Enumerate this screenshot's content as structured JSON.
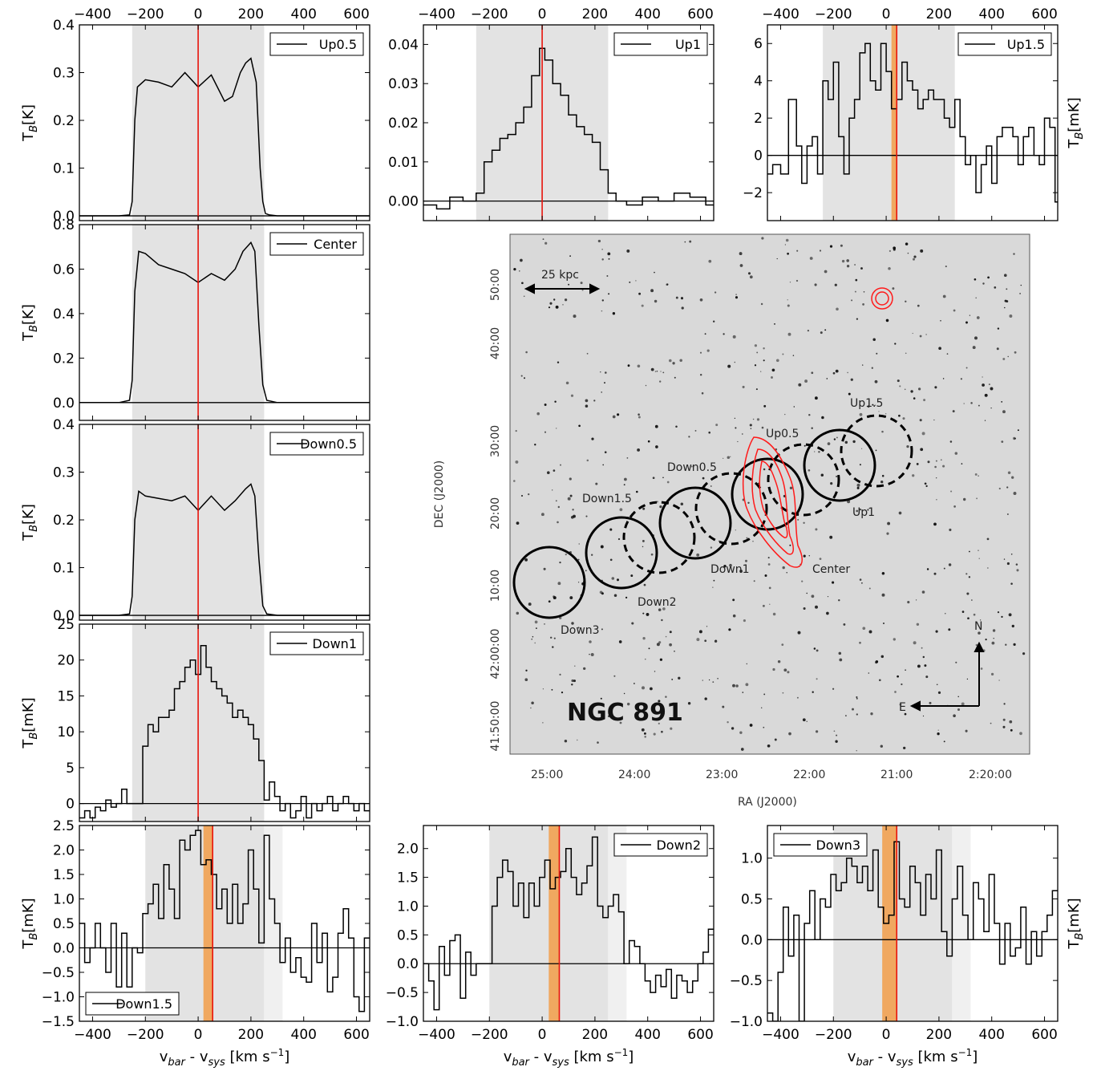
{
  "chart_data": [
    {
      "id": "up05",
      "type": "line",
      "legend": "Up0.5",
      "legend_position": "top-right",
      "xlim": [
        -450,
        650
      ],
      "ylim": [
        -0.01,
        0.4
      ],
      "yticks": [
        "0.0",
        "0.1",
        "0.2",
        "0.3",
        "0.4"
      ],
      "ytick_values": [
        0.0,
        0.1,
        0.2,
        0.3,
        0.4
      ],
      "xticks": [
        "−400",
        "−200",
        "0",
        "200",
        "400",
        "600"
      ],
      "xtick_values": [
        -400,
        -200,
        0,
        200,
        400,
        600
      ],
      "xticks_position": "top",
      "ylabel": "T",
      "ylabel_sub": "B",
      "ylabel_unit": "[K]",
      "ylabel_side": "left",
      "xlabel": "",
      "shade": [
        [
          -250,
          250
        ]
      ],
      "band": null,
      "vline": 0,
      "steps": false,
      "x": [
        -450,
        -300,
        -260,
        -250,
        -240,
        -230,
        -200,
        -150,
        -100,
        -50,
        0,
        50,
        100,
        130,
        160,
        180,
        200,
        220,
        235,
        245,
        255,
        270,
        300,
        650
      ],
      "y": [
        0.0,
        0.0,
        0.002,
        0.03,
        0.2,
        0.27,
        0.285,
        0.28,
        0.27,
        0.3,
        0.27,
        0.295,
        0.24,
        0.25,
        0.3,
        0.32,
        0.33,
        0.28,
        0.1,
        0.03,
        0.005,
        0.002,
        0.0,
        0.0
      ]
    },
    {
      "id": "up1",
      "type": "line",
      "legend": "Up1",
      "legend_position": "top-right",
      "xlim": [
        -450,
        650
      ],
      "ylim": [
        -0.005,
        0.045
      ],
      "yticks": [
        "0.00",
        "0.01",
        "0.02",
        "0.03",
        "0.04"
      ],
      "ytick_values": [
        0.0,
        0.01,
        0.02,
        0.03,
        0.04
      ],
      "xticks": [
        "−400",
        "−200",
        "0",
        "200",
        "400",
        "600"
      ],
      "xtick_values": [
        -400,
        -200,
        0,
        200,
        400,
        600
      ],
      "xticks_position": "top",
      "ylabel": "",
      "ylabel_sub": "",
      "ylabel_unit": "",
      "ylabel_side": "left",
      "xlabel": "",
      "shade": [
        [
          -250,
          250
        ]
      ],
      "band": null,
      "vline": 0,
      "steps": true,
      "x": [
        -450,
        -400,
        -350,
        -300,
        -250,
        -220,
        -190,
        -160,
        -130,
        -100,
        -70,
        -40,
        -10,
        10,
        40,
        70,
        100,
        130,
        160,
        190,
        220,
        250,
        280,
        320,
        380,
        440,
        500,
        560,
        620
      ],
      "y": [
        -0.001,
        -0.002,
        0.001,
        0.0,
        0.002,
        0.01,
        0.013,
        0.016,
        0.017,
        0.02,
        0.024,
        0.032,
        0.039,
        0.036,
        0.03,
        0.027,
        0.022,
        0.019,
        0.017,
        0.015,
        0.008,
        0.002,
        0.0,
        -0.001,
        0.001,
        0.0,
        0.002,
        0.001,
        -0.001
      ]
    },
    {
      "id": "up15",
      "type": "line",
      "legend": "Up1.5",
      "legend_position": "top-right",
      "xlim": [
        -450,
        650
      ],
      "ylim": [
        -3.5,
        7
      ],
      "yticks": [
        "−2",
        "0",
        "2",
        "4",
        "6"
      ],
      "ytick_values": [
        -2,
        0,
        2,
        4,
        6
      ],
      "xticks": [
        "−400",
        "−200",
        "0",
        "200",
        "400",
        "600"
      ],
      "xtick_values": [
        -400,
        -200,
        0,
        200,
        400,
        600
      ],
      "xticks_position": "top",
      "ylabel": "T",
      "ylabel_sub": "B",
      "ylabel_unit": "[mK]",
      "ylabel_side": "right",
      "xlabel": "",
      "shade": [
        [
          -240,
          260
        ]
      ],
      "band": [
        20,
        40
      ],
      "vline": 40,
      "steps": true,
      "x": [
        -450,
        -430,
        -400,
        -370,
        -340,
        -320,
        -300,
        -280,
        -260,
        -240,
        -220,
        -200,
        -180,
        -160,
        -140,
        -120,
        -100,
        -80,
        -60,
        -40,
        -20,
        0,
        20,
        40,
        60,
        80,
        100,
        120,
        140,
        160,
        180,
        200,
        220,
        240,
        260,
        280,
        300,
        320,
        340,
        360,
        380,
        400,
        420,
        440,
        460,
        480,
        500,
        520,
        540,
        560,
        580,
        600,
        620,
        640
      ],
      "y": [
        -1,
        -0.5,
        -1,
        3,
        0.5,
        -1.5,
        0.5,
        1,
        -1,
        4,
        3,
        5,
        1,
        -1,
        2,
        3,
        5.5,
        6,
        4,
        3.5,
        6,
        4.5,
        2.5,
        3,
        5,
        4,
        3.5,
        2.5,
        3,
        3.5,
        3,
        3,
        2,
        1.5,
        3,
        1,
        -0.5,
        0,
        -2,
        -0.5,
        0.5,
        -1.5,
        1,
        1.5,
        1.5,
        1,
        -0.5,
        1,
        1.5,
        0,
        -0.5,
        2,
        1.5,
        -2.5
      ]
    },
    {
      "id": "center",
      "type": "line",
      "legend": "Center",
      "legend_position": "top-right",
      "xlim": [
        -450,
        650
      ],
      "ylim": [
        -0.08,
        0.8
      ],
      "yticks": [
        "0.0",
        "0.2",
        "0.4",
        "0.6",
        "0.8"
      ],
      "ytick_values": [
        0.0,
        0.2,
        0.4,
        0.6,
        0.8
      ],
      "xticks": [],
      "xtick_values": [
        -400,
        -200,
        0,
        200,
        400,
        600
      ],
      "xticks_position": "none",
      "ylabel": "T",
      "ylabel_sub": "B",
      "ylabel_unit": "[K]",
      "ylabel_side": "left",
      "xlabel": "",
      "shade": [
        [
          -250,
          250
        ]
      ],
      "band": null,
      "vline": 0,
      "steps": false,
      "x": [
        -450,
        -300,
        -260,
        -250,
        -240,
        -225,
        -200,
        -150,
        -100,
        -50,
        0,
        50,
        100,
        140,
        170,
        200,
        215,
        230,
        245,
        260,
        300,
        650
      ],
      "y": [
        0.0,
        0.0,
        0.01,
        0.1,
        0.5,
        0.68,
        0.67,
        0.62,
        0.6,
        0.58,
        0.54,
        0.58,
        0.55,
        0.6,
        0.68,
        0.72,
        0.68,
        0.35,
        0.08,
        0.01,
        0.0,
        0.0
      ]
    },
    {
      "id": "down05",
      "type": "line",
      "legend": "Down0.5",
      "legend_position": "top-right",
      "xlim": [
        -450,
        650
      ],
      "ylim": [
        -0.01,
        0.4
      ],
      "yticks": [
        "0.0",
        "0.1",
        "0.2",
        "0.3",
        "0.4"
      ],
      "ytick_values": [
        0.0,
        0.1,
        0.2,
        0.3,
        0.4
      ],
      "xticks": [],
      "xtick_values": [
        -400,
        -200,
        0,
        200,
        400,
        600
      ],
      "xticks_position": "none",
      "ylabel": "T",
      "ylabel_sub": "B",
      "ylabel_unit": "[K]",
      "ylabel_side": "left",
      "xlabel": "",
      "shade": [
        [
          -250,
          250
        ]
      ],
      "band": null,
      "vline": 0,
      "steps": false,
      "x": [
        -450,
        -300,
        -260,
        -250,
        -240,
        -225,
        -200,
        -150,
        -100,
        -50,
        0,
        50,
        100,
        140,
        180,
        200,
        215,
        230,
        245,
        260,
        300,
        650
      ],
      "y": [
        0.0,
        0.0,
        0.003,
        0.04,
        0.2,
        0.26,
        0.25,
        0.245,
        0.24,
        0.25,
        0.22,
        0.25,
        0.22,
        0.24,
        0.265,
        0.275,
        0.25,
        0.12,
        0.02,
        0.003,
        0.0,
        0.0
      ]
    },
    {
      "id": "down1",
      "type": "line",
      "legend": "Down1",
      "legend_position": "top-right",
      "xlim": [
        -450,
        650
      ],
      "ylim": [
        -2.5,
        25
      ],
      "yticks": [
        "0",
        "5",
        "10",
        "15",
        "20",
        "25"
      ],
      "ytick_values": [
        0,
        5,
        10,
        15,
        20,
        25
      ],
      "xticks": [],
      "xtick_values": [
        -400,
        -200,
        0,
        200,
        400,
        600
      ],
      "xticks_position": "none",
      "ylabel": "T",
      "ylabel_sub": "B",
      "ylabel_unit": "[mK]",
      "ylabel_side": "left",
      "xlabel": "",
      "shade": [
        [
          -250,
          250
        ]
      ],
      "band": null,
      "vline": 0,
      "steps": true,
      "x": [
        -450,
        -430,
        -410,
        -390,
        -370,
        -350,
        -330,
        -310,
        -290,
        -270,
        -250,
        -230,
        -210,
        -190,
        -170,
        -150,
        -130,
        -110,
        -90,
        -70,
        -50,
        -30,
        -10,
        10,
        30,
        50,
        70,
        90,
        110,
        130,
        150,
        170,
        190,
        210,
        230,
        250,
        270,
        290,
        310,
        330,
        350,
        370,
        390,
        410,
        430,
        450,
        470,
        490,
        510,
        530,
        550,
        570,
        590,
        610,
        630
      ],
      "y": [
        -2,
        -1,
        -2,
        -0.5,
        -1,
        0.5,
        -0.5,
        0,
        2,
        0,
        0,
        0,
        8,
        11,
        10,
        12,
        12,
        13,
        16,
        17,
        19,
        20,
        18,
        22,
        19,
        17,
        16,
        15,
        14,
        12,
        13,
        12,
        11,
        9,
        6,
        0.5,
        3,
        1,
        -1,
        0,
        -2,
        -1,
        1,
        -2,
        0,
        -1,
        0,
        1,
        -1,
        0,
        1,
        0,
        -1,
        0,
        -1
      ]
    },
    {
      "id": "down15",
      "type": "line",
      "legend": "Down1.5",
      "legend_position": "bottom-left",
      "xlim": [
        -450,
        650
      ],
      "ylim": [
        -1.5,
        2.5
      ],
      "yticks": [
        "−1.5",
        "−1.0",
        "−0.5",
        "0.0",
        "0.5",
        "1.0",
        "1.5",
        "2.0",
        "2.5"
      ],
      "ytick_values": [
        -1.5,
        -1.0,
        -0.5,
        0.0,
        0.5,
        1.0,
        1.5,
        2.0,
        2.5
      ],
      "xticks": [
        "−400",
        "−200",
        "0",
        "200",
        "400",
        "600"
      ],
      "xtick_values": [
        -400,
        -200,
        0,
        200,
        400,
        600
      ],
      "xticks_position": "bottom",
      "ylabel": "T",
      "ylabel_sub": "B",
      "ylabel_unit": "[mK]",
      "ylabel_side": "left",
      "xlabel": "v",
      "xlabel_sub1": "bar",
      "xlabel_mid": " - v",
      "xlabel_sub2": "sys",
      "xlabel_unit": " [km s",
      "xlabel_sup": "−1",
      "xlabel_end": "]",
      "shade": [
        [
          -200,
          250
        ]
      ],
      "shade_light": [
        [
          250,
          320
        ]
      ],
      "band": [
        20,
        55
      ],
      "vline": 55,
      "steps": true,
      "x": [
        -450,
        -430,
        -410,
        -390,
        -370,
        -350,
        -330,
        -310,
        -290,
        -270,
        -250,
        -230,
        -210,
        -190,
        -170,
        -150,
        -130,
        -110,
        -90,
        -70,
        -50,
        -30,
        -10,
        10,
        30,
        50,
        70,
        90,
        110,
        130,
        150,
        170,
        190,
        210,
        230,
        250,
        270,
        290,
        310,
        330,
        350,
        370,
        390,
        410,
        430,
        450,
        470,
        490,
        510,
        530,
        550,
        570,
        590,
        610,
        630
      ],
      "y": [
        0.5,
        -0.3,
        0,
        0.5,
        0,
        -0.5,
        0.5,
        -0.8,
        0.3,
        -0.8,
        0,
        -0.1,
        0.7,
        0.9,
        1.3,
        0.6,
        1.7,
        1.2,
        0.6,
        2.2,
        2.0,
        2.3,
        2.4,
        1.7,
        1.8,
        1.5,
        0.8,
        1.2,
        0.5,
        1.3,
        0.5,
        0.9,
        2.0,
        1.2,
        0.1,
        2.3,
        1.0,
        0.5,
        -0.3,
        0.2,
        -0.5,
        -0.2,
        -0.6,
        -0.7,
        0.5,
        -0.3,
        0.3,
        -0.9,
        -0.6,
        0.3,
        0.8,
        0.2,
        -1.0,
        -1.3,
        0.2
      ]
    },
    {
      "id": "down2",
      "type": "line",
      "legend": "Down2",
      "legend_position": "top-right",
      "xlim": [
        -450,
        650
      ],
      "ylim": [
        -1.0,
        2.4
      ],
      "yticks": [
        "−1.0",
        "−0.5",
        "0.0",
        "0.5",
        "1.0",
        "1.5",
        "2.0"
      ],
      "ytick_values": [
        -1.0,
        -0.5,
        0.0,
        0.5,
        1.0,
        1.5,
        2.0
      ],
      "xticks": [
        "−400",
        "−200",
        "0",
        "200",
        "400",
        "600"
      ],
      "xtick_values": [
        -400,
        -200,
        0,
        200,
        400,
        600
      ],
      "xticks_position": "bottom",
      "ylabel": "",
      "ylabel_sub": "",
      "ylabel_unit": "",
      "ylabel_side": "left",
      "xlabel": "v",
      "xlabel_sub1": "bar",
      "xlabel_mid": " - v",
      "xlabel_sub2": "sys",
      "xlabel_unit": " [km s",
      "xlabel_sup": "−1",
      "xlabel_end": "]",
      "shade": [
        [
          -200,
          250
        ]
      ],
      "shade_light": [
        [
          250,
          320
        ]
      ],
      "band": [
        25,
        65
      ],
      "vline": 65,
      "steps": true,
      "x": [
        -450,
        -430,
        -410,
        -390,
        -370,
        -350,
        -330,
        -310,
        -290,
        -270,
        -250,
        -230,
        -210,
        -190,
        -170,
        -150,
        -130,
        -110,
        -90,
        -70,
        -50,
        -30,
        -10,
        10,
        30,
        50,
        70,
        90,
        110,
        130,
        150,
        170,
        190,
        210,
        230,
        250,
        270,
        290,
        310,
        330,
        350,
        370,
        390,
        410,
        430,
        450,
        470,
        490,
        510,
        530,
        550,
        570,
        590,
        610,
        630
      ],
      "y": [
        0.0,
        -0.3,
        -0.8,
        0.3,
        -0.2,
        0.4,
        0.5,
        -0.6,
        0.2,
        -0.2,
        0.0,
        0.0,
        0.0,
        1.0,
        1.5,
        1.8,
        1.6,
        1.0,
        1.4,
        0.8,
        1.4,
        1.0,
        1.5,
        1.8,
        1.3,
        1.5,
        1.6,
        2.0,
        1.5,
        1.2,
        1.4,
        1.7,
        2.2,
        1.0,
        0.8,
        1.0,
        1.2,
        0.9,
        0.0,
        0.4,
        0.3,
        0.0,
        -0.3,
        -0.5,
        -0.2,
        -0.4,
        -0.1,
        -0.6,
        -0.2,
        -0.3,
        -0.5,
        -0.3,
        0.0,
        0.2,
        0.6
      ]
    },
    {
      "id": "down3",
      "type": "line",
      "legend": "Down3",
      "legend_position": "top-left",
      "xlim": [
        -450,
        650
      ],
      "ylim": [
        -1.0,
        1.4
      ],
      "yticks": [
        "−1.0",
        "−0.5",
        "0.0",
        "0.5",
        "1.0"
      ],
      "ytick_values": [
        -1.0,
        -0.5,
        0.0,
        0.5,
        1.0
      ],
      "xticks": [
        "−400",
        "−200",
        "0",
        "200",
        "400",
        "600"
      ],
      "xtick_values": [
        -400,
        -200,
        0,
        200,
        400,
        600
      ],
      "xticks_position": "bottom",
      "ylabel": "T",
      "ylabel_sub": "B",
      "ylabel_unit": "[mK]",
      "ylabel_side": "right",
      "xlabel": "v",
      "xlabel_sub1": "bar",
      "xlabel_mid": " - v",
      "xlabel_sub2": "sys",
      "xlabel_unit": " [km s",
      "xlabel_sup": "−1",
      "xlabel_end": "]",
      "shade": [
        [
          -200,
          250
        ]
      ],
      "shade_light": [
        [
          250,
          320
        ]
      ],
      "band": [
        -15,
        40
      ],
      "vline": 40,
      "steps": true,
      "x": [
        -450,
        -430,
        -410,
        -390,
        -370,
        -350,
        -330,
        -310,
        -290,
        -270,
        -250,
        -230,
        -210,
        -190,
        -170,
        -150,
        -130,
        -110,
        -90,
        -70,
        -50,
        -30,
        -10,
        10,
        30,
        50,
        70,
        90,
        110,
        130,
        150,
        170,
        190,
        210,
        230,
        250,
        270,
        290,
        310,
        330,
        350,
        370,
        390,
        410,
        430,
        450,
        470,
        490,
        510,
        530,
        550,
        570,
        590,
        610,
        630
      ],
      "y": [
        -0.9,
        -1.0,
        -0.4,
        0.4,
        -0.2,
        0.3,
        -1.0,
        0.2,
        0.6,
        0.0,
        0.5,
        0.4,
        0.8,
        0.6,
        0.7,
        1.0,
        0.9,
        0.7,
        0.9,
        0.6,
        1.1,
        0.4,
        0.2,
        0.3,
        1.2,
        0.5,
        0.4,
        0.9,
        0.7,
        0.3,
        0.8,
        0.5,
        1.1,
        0.1,
        -0.2,
        0.5,
        0.9,
        0.3,
        0.0,
        0.7,
        0.5,
        0.1,
        0.8,
        0.2,
        -0.3,
        0.2,
        -0.2,
        -0.1,
        0.4,
        -0.3,
        0.1,
        -0.2,
        0.1,
        0.3,
        0.6
      ]
    }
  ],
  "map": {
    "galaxy_name": "NGC 891",
    "scale_bar": "25 kpc",
    "xlabel": "RA (J2000)",
    "ylabel": "DEC (J2000)",
    "ra_ticks": [
      "25:00",
      "24:00",
      "23:00",
      "22:00",
      "21:00",
      "2:20:00"
    ],
    "dec_ticks": [
      "50:00",
      "40:00",
      "30:00",
      "20:00",
      "10:00",
      "42:00:00",
      "41:50:00"
    ],
    "compass_n": "N",
    "compass_e": "E",
    "beam_labels": [
      "Up1.5",
      "Up0.5",
      "Down0.5",
      "Down1.5",
      "Up1",
      "Down1",
      "Center",
      "Down2",
      "Down3"
    ],
    "contour_color": "#ff1a1a"
  }
}
